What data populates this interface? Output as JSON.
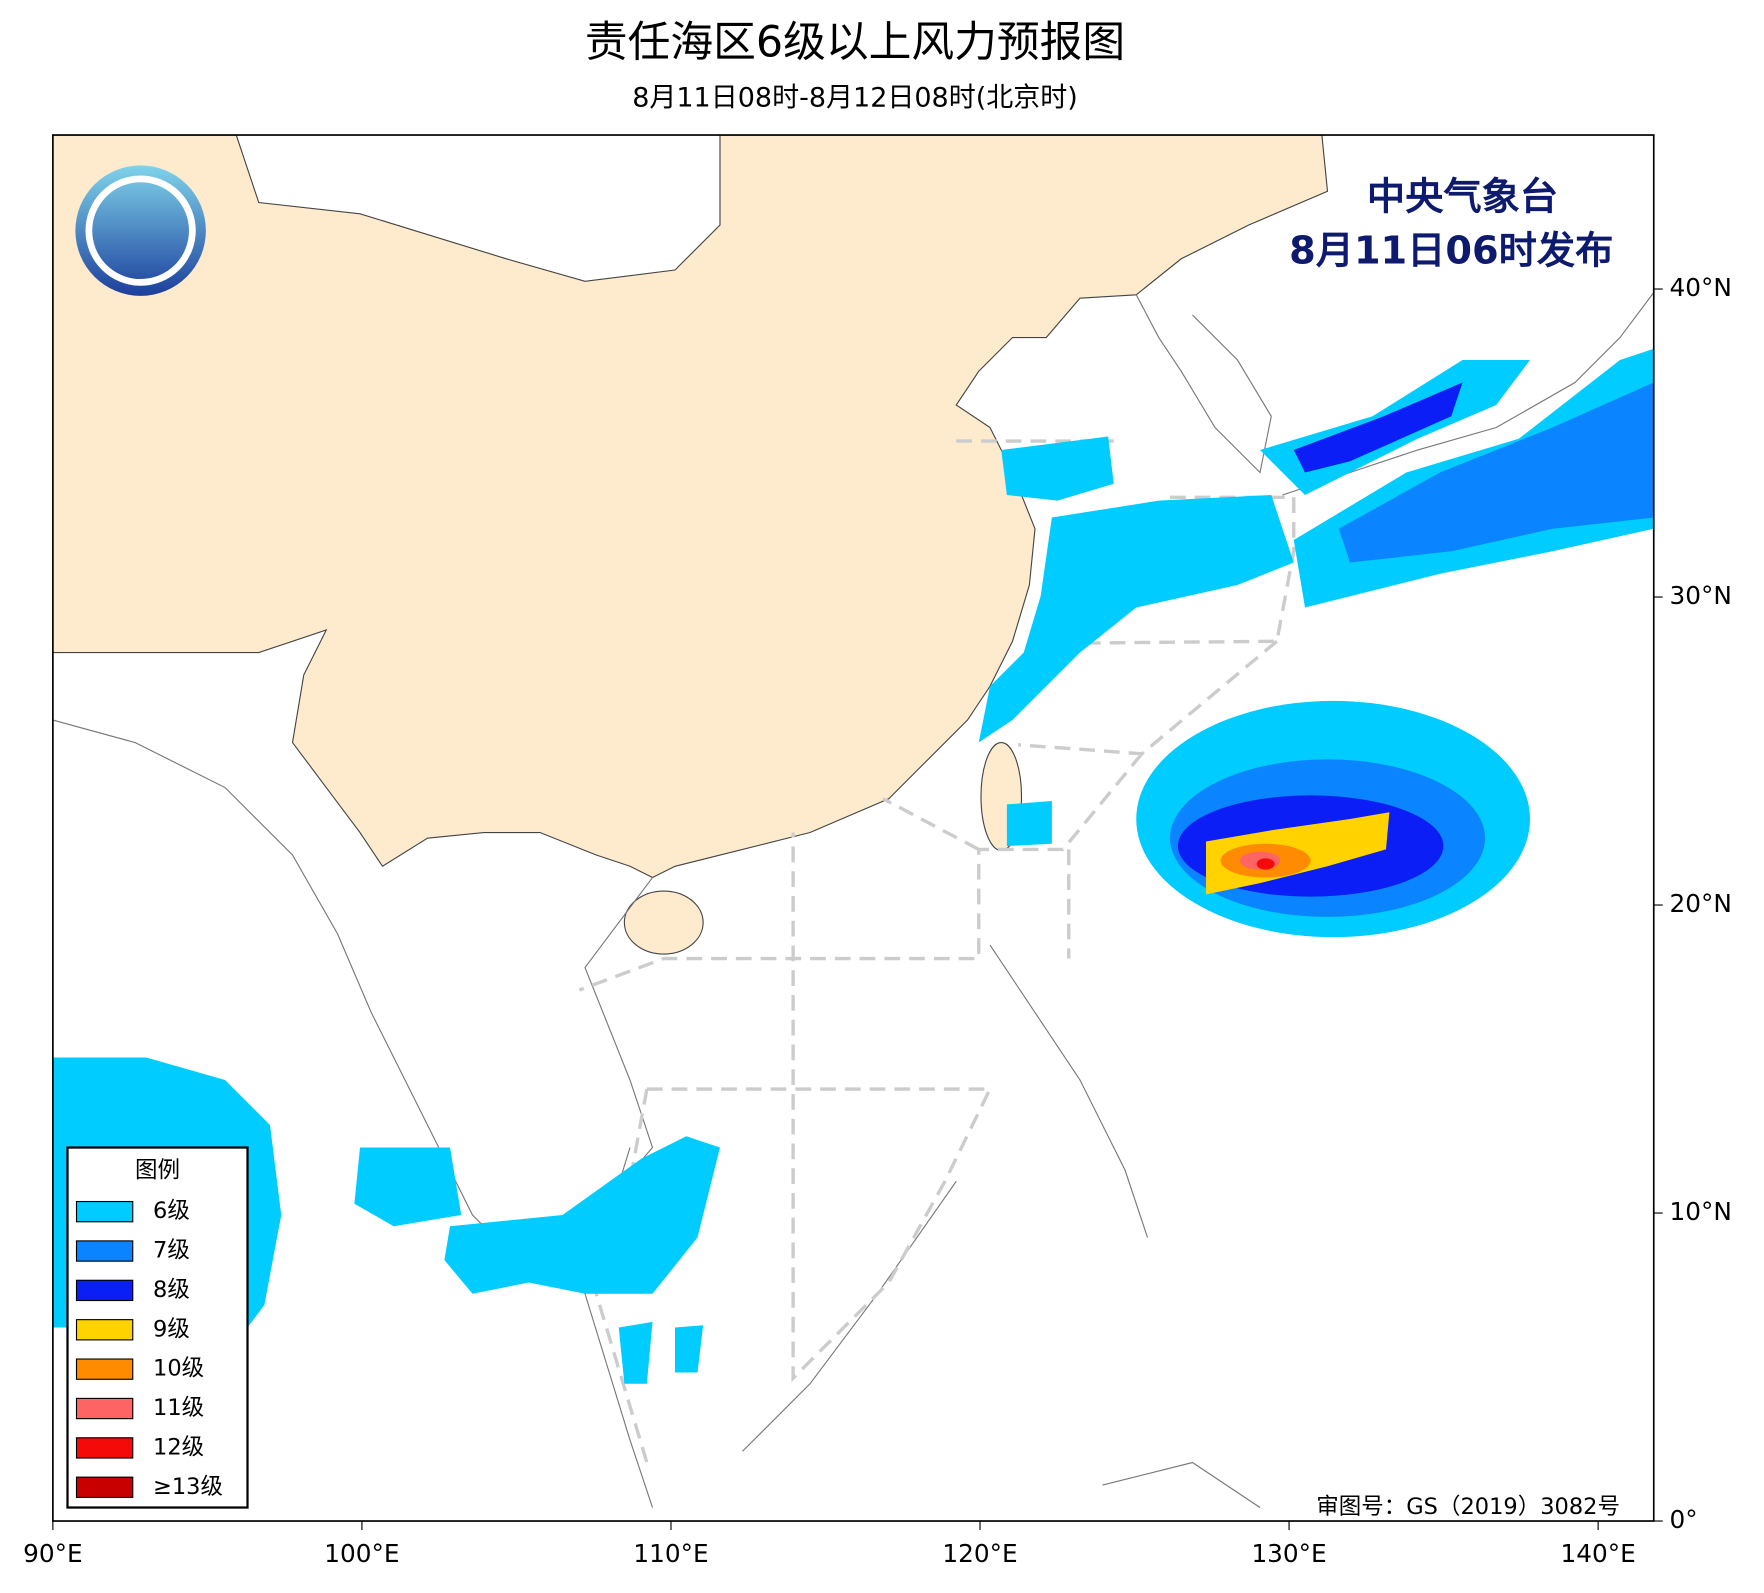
{
  "title": "责任海区6级以上风力预报图",
  "subtitle": "8月11日08时-8月12日08时(北京时)",
  "publisher": "中央气象台",
  "issue_time": "8月11日06时发布",
  "approval": "审图号：GS（2019）3082号",
  "map": {
    "xlim": [
      90,
      141.8
    ],
    "ylim": [
      0,
      45
    ],
    "xticks": [
      {
        "value": 90,
        "label": "90°E"
      },
      {
        "value": 100,
        "label": "100°E"
      },
      {
        "value": 110,
        "label": "110°E"
      },
      {
        "value": 120,
        "label": "120°E"
      },
      {
        "value": 130,
        "label": "130°E"
      },
      {
        "value": 140,
        "label": "140°E"
      }
    ],
    "yticks": [
      {
        "value": 0,
        "label": "0°"
      },
      {
        "value": 10,
        "label": "10°N"
      },
      {
        "value": 20,
        "label": "20°N"
      },
      {
        "value": 30,
        "label": "30°N"
      },
      {
        "value": 40,
        "label": "40°N"
      }
    ]
  },
  "legend": {
    "title": "图例",
    "items": [
      {
        "label": "6级",
        "color": "#00ccff"
      },
      {
        "label": "7级",
        "color": "#0a84ff"
      },
      {
        "label": "8级",
        "color": "#0a1ef5"
      },
      {
        "label": "9级",
        "color": "#ffd200"
      },
      {
        "label": "10级",
        "color": "#ff8c00"
      },
      {
        "label": "11级",
        "color": "#ff6464"
      },
      {
        "label": "12级",
        "color": "#f50a0a"
      },
      {
        "label": "≥13级",
        "color": "#c80000"
      }
    ]
  }
}
